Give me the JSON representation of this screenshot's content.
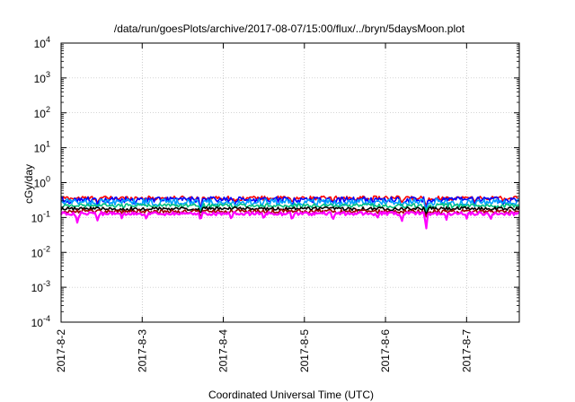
{
  "chart_data": {
    "type": "line",
    "title": "/data/run/goesPlots/archive/2017-08-07/15:00/flux/../bryn/5daysMoon.plot",
    "xlabel": "Coordinated Universal Time (UTC)",
    "ylabel": "cGy/day",
    "yscale": "log",
    "ylim": [
      0.0001,
      10000
    ],
    "xlim": [
      0,
      5.65
    ],
    "grid": true,
    "legend": "none",
    "x_ticks": [
      {
        "value": 0,
        "label": "2017-8-2"
      },
      {
        "value": 1,
        "label": "2017-8-3"
      },
      {
        "value": 2,
        "label": "2017-8-4"
      },
      {
        "value": 3,
        "label": "2017-8-5"
      },
      {
        "value": 4,
        "label": "2017-8-6"
      },
      {
        "value": 5,
        "label": "2017-8-7"
      }
    ],
    "y_ticks": [
      {
        "value": 0.0001,
        "base": "10",
        "exp": "-4"
      },
      {
        "value": 0.001,
        "base": "10",
        "exp": "-3"
      },
      {
        "value": 0.01,
        "base": "10",
        "exp": "-2"
      },
      {
        "value": 0.1,
        "base": "10",
        "exp": "-1"
      },
      {
        "value": 1,
        "base": "10",
        "exp": "0"
      },
      {
        "value": 10,
        "base": "10",
        "exp": "1"
      },
      {
        "value": 100,
        "base": "10",
        "exp": "2"
      },
      {
        "value": 1000,
        "base": "10",
        "exp": "3"
      },
      {
        "value": 10000,
        "base": "10",
        "exp": "4"
      }
    ],
    "series": [
      {
        "color": "#ff0000",
        "baseline": 0.36,
        "noise": 0.05,
        "dips": [
          [
            0.45,
            0.27
          ],
          [
            1.72,
            0.17
          ],
          [
            2.15,
            0.26
          ],
          [
            2.85,
            0.24
          ],
          [
            3.35,
            0.27
          ],
          [
            4.2,
            0.26
          ],
          [
            4.5,
            0.19
          ],
          [
            5.1,
            0.27
          ],
          [
            5.45,
            0.28
          ]
        ]
      },
      {
        "color": "#0000ff",
        "baseline": 0.33,
        "noise": 0.06,
        "dips": [
          [
            0.1,
            0.25
          ],
          [
            0.45,
            0.2
          ],
          [
            0.9,
            0.24
          ],
          [
            1.72,
            0.14
          ],
          [
            2.15,
            0.22
          ],
          [
            2.85,
            0.22
          ],
          [
            3.35,
            0.24
          ],
          [
            3.8,
            0.25
          ],
          [
            4.2,
            0.2
          ],
          [
            4.5,
            0.16
          ],
          [
            5.1,
            0.22
          ],
          [
            5.45,
            0.24
          ]
        ]
      },
      {
        "color": "#00a0ff",
        "baseline": 0.28,
        "noise": 0.06,
        "dips": [
          [
            0.45,
            0.19
          ],
          [
            1.2,
            0.21
          ],
          [
            1.72,
            0.14
          ],
          [
            2.15,
            0.2
          ],
          [
            2.85,
            0.2
          ],
          [
            3.35,
            0.21
          ],
          [
            4.2,
            0.19
          ],
          [
            4.5,
            0.15
          ],
          [
            5.1,
            0.2
          ]
        ]
      },
      {
        "color": "#00c080",
        "baseline": 0.22,
        "noise": 0.03,
        "dips": [
          [
            1.72,
            0.14
          ],
          [
            4.5,
            0.14
          ]
        ]
      },
      {
        "color": "#000000",
        "baseline": 0.18,
        "noise": 0.02,
        "dips": [
          [
            1.72,
            0.12
          ],
          [
            4.5,
            0.12
          ]
        ]
      },
      {
        "color": "#a00000",
        "baseline": 0.15,
        "noise": 0.02,
        "dips": [
          [
            1.72,
            0.1
          ],
          [
            4.5,
            0.1
          ]
        ]
      },
      {
        "color": "#ff00ff",
        "baseline": 0.13,
        "noise": 0.015,
        "dips": [
          [
            0.2,
            0.07
          ],
          [
            0.45,
            0.08
          ],
          [
            0.75,
            0.09
          ],
          [
            1.05,
            0.09
          ],
          [
            1.72,
            0.08
          ],
          [
            2.1,
            0.08
          ],
          [
            2.5,
            0.09
          ],
          [
            2.85,
            0.08
          ],
          [
            3.35,
            0.08
          ],
          [
            3.9,
            0.09
          ],
          [
            4.2,
            0.07
          ],
          [
            4.5,
            0.035
          ],
          [
            4.75,
            0.08
          ],
          [
            5.0,
            0.09
          ],
          [
            5.3,
            0.09
          ]
        ]
      }
    ]
  }
}
